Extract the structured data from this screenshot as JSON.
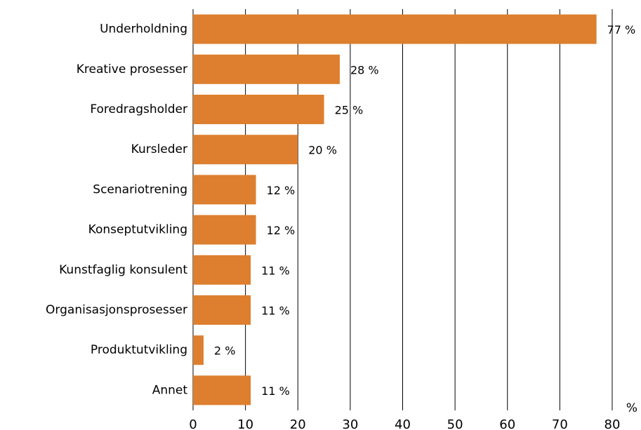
{
  "chart_data": {
    "type": "bar",
    "orientation": "horizontal",
    "categories": [
      "Underholdning",
      "Kreative prosesser",
      "Foredragsholder",
      "Kursleder",
      "Scenariotrening",
      "Konseptutvikling",
      "Kunstfaglig konsulent",
      "Organisasjonsprosesser",
      "Produktutvikling",
      "Annet"
    ],
    "values": [
      77,
      28,
      25,
      20,
      12,
      12,
      11,
      11,
      2,
      11
    ],
    "value_labels": [
      "77 %",
      "28 %",
      "25 %",
      "20 %",
      "12 %",
      "12 %",
      "11 %",
      "11 %",
      "2 %",
      "11 %"
    ],
    "color": "#dd7f2e",
    "x_label": "%",
    "xlim": [
      0,
      80
    ],
    "xticks": [
      0,
      10,
      20,
      30,
      40,
      50,
      60,
      70,
      80
    ],
    "grid": true
  }
}
